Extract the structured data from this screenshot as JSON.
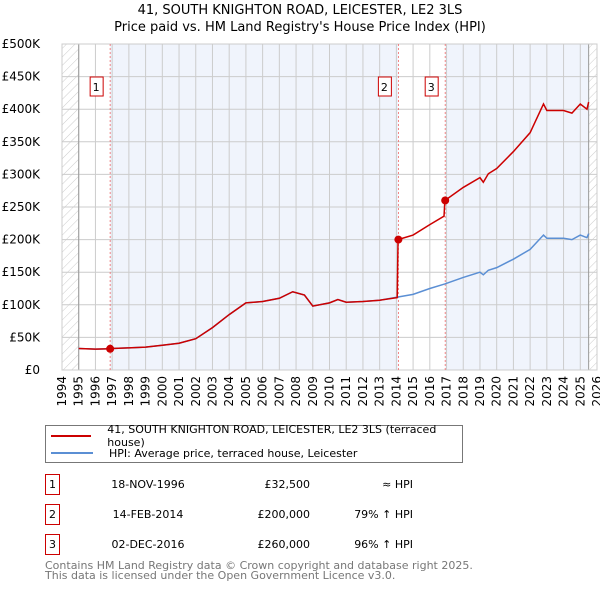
{
  "chart_data": {
    "type": "line",
    "title": "41, SOUTH KNIGHTON ROAD, LEICESTER, LE2 3LS",
    "subtitle": "Price paid vs. HM Land Registry's House Price Index (HPI)",
    "xlim": [
      1994,
      2026
    ],
    "ylim": [
      0,
      500000
    ],
    "x_ticks": [
      "1994",
      "1995",
      "1996",
      "1997",
      "1998",
      "1999",
      "2000",
      "2001",
      "2002",
      "2003",
      "2004",
      "2005",
      "2006",
      "2007",
      "2008",
      "2009",
      "2010",
      "2011",
      "2012",
      "2013",
      "2014",
      "2015",
      "2016",
      "2017",
      "2018",
      "2019",
      "2020",
      "2021",
      "2022",
      "2023",
      "2024",
      "2025",
      "2026"
    ],
    "y_ticks": [
      {
        "v": 0,
        "label": "£0"
      },
      {
        "v": 50000,
        "label": "£50K"
      },
      {
        "v": 100000,
        "label": "£100K"
      },
      {
        "v": 150000,
        "label": "£150K"
      },
      {
        "v": 200000,
        "label": "£200K"
      },
      {
        "v": 250000,
        "label": "£250K"
      },
      {
        "v": 300000,
        "label": "£300K"
      },
      {
        "v": 350000,
        "label": "£350K"
      },
      {
        "v": 400000,
        "label": "£400K"
      },
      {
        "v": 450000,
        "label": "£450K"
      },
      {
        "v": 500000,
        "label": "£500K"
      }
    ],
    "grid": true,
    "series": [
      {
        "name": "HPI: Average price, terraced house, Leicester",
        "color": "#5b8fd4",
        "x": [
          1995,
          1996,
          1996.9,
          1997,
          1998,
          1999,
          2000,
          2001,
          2002,
          2003,
          2004,
          2005,
          2006,
          2007,
          2007.8,
          2008.5,
          2009,
          2010,
          2010.5,
          2011,
          2012,
          2013,
          2014.1,
          2015,
          2016,
          2016.9,
          2018,
          2019,
          2019.2,
          2019.5,
          2020,
          2021,
          2022,
          2022.8,
          2023,
          2024,
          2024.5,
          2025,
          2025.4,
          2025.5
        ],
        "y": [
          33000,
          32000,
          32500,
          33000,
          34000,
          35000,
          38000,
          41000,
          48000,
          65000,
          85000,
          103000,
          105000,
          110000,
          120000,
          115000,
          98000,
          103000,
          108000,
          104000,
          105000,
          107000,
          112000,
          116000,
          125000,
          132000,
          142000,
          150000,
          146000,
          153000,
          157000,
          170000,
          185000,
          207000,
          202000,
          202000,
          200000,
          207000,
          203000,
          209000
        ]
      },
      {
        "name": "41, SOUTH KNIGHTON ROAD, LEICESTER, LE2 3LS (terraced house)",
        "color": "#cc0000",
        "x": [
          1995,
          1996,
          1996.9,
          1997,
          1998,
          1999,
          2000,
          2001,
          2002,
          2003,
          2004,
          2005,
          2006,
          2007,
          2007.8,
          2008.5,
          2009,
          2010,
          2010.5,
          2011,
          2012,
          2013,
          2014.05,
          2014.1,
          2015,
          2016,
          2016.85,
          2016.9,
          2018,
          2019,
          2019.2,
          2019.5,
          2020,
          2021,
          2022,
          2022.8,
          2023,
          2024,
          2024.5,
          2025,
          2025.4,
          2025.5
        ],
        "y": [
          33000,
          32000,
          32500,
          33000,
          34000,
          35000,
          38000,
          41000,
          48000,
          65000,
          85000,
          103000,
          105000,
          110000,
          120000,
          115000,
          98000,
          103000,
          108000,
          104000,
          105000,
          107000,
          111000,
          200000,
          207000,
          223000,
          236000,
          260000,
          280000,
          295000,
          288000,
          301000,
          309000,
          335000,
          364000,
          408000,
          398000,
          398000,
          394000,
          408000,
          400000,
          411000
        ]
      }
    ],
    "sales": [
      {
        "id": "1",
        "x": 1996.88,
        "price": 32500,
        "date": "18-NOV-1996",
        "price_label": "£32,500",
        "vs_hpi": "≈ HPI"
      },
      {
        "id": "2",
        "x": 2014.12,
        "price": 200000,
        "date": "14-FEB-2014",
        "price_label": "£200,000",
        "vs_hpi": "79% ↑ HPI"
      },
      {
        "id": "3",
        "x": 2016.92,
        "price": 260000,
        "date": "02-DEC-2016",
        "price_label": "£260,000",
        "vs_hpi": "96% ↑ HPI"
      }
    ]
  },
  "legend": {
    "red": "41, SOUTH KNIGHTON ROAD, LEICESTER, LE2 3LS (terraced house)",
    "blue": "HPI: Average price, terraced house, Leicester"
  },
  "footer": {
    "line1": "Contains HM Land Registry data © Crown copyright and database right 2025.",
    "line2": "This data is licensed under the Open Government Licence v3.0."
  }
}
